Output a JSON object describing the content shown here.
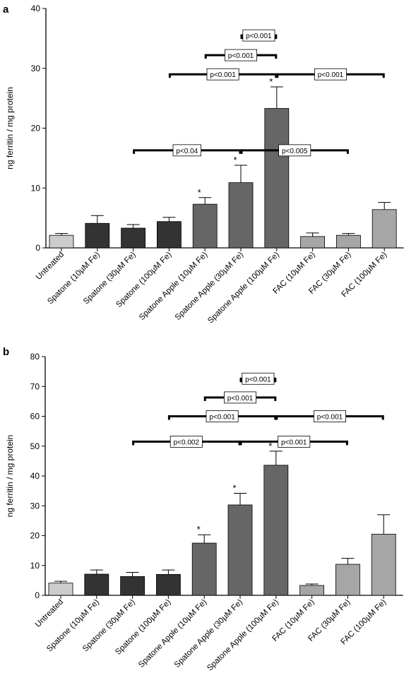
{
  "colors": {
    "untreated": "#cccccc",
    "spatone": "#333333",
    "spatone_apple": "#666666",
    "fac": "#a6a6a6"
  },
  "chart_data": [
    {
      "panel": "a",
      "type": "bar",
      "ylabel": "ng ferritin / mg protein",
      "ylim": [
        0,
        40
      ],
      "yticks": [
        0,
        10,
        20,
        30,
        40
      ],
      "categories": [
        "Untreated",
        "Spatone (10µM Fe)",
        "Spatone (30µM Fe)",
        "Spatone (100µM Fe)",
        "Spatone Apple (10µM Fe)",
        "Spatone Apple (30µM Fe)",
        "Spatone Apple (100µM Fe)",
        "FAC (10µM Fe)",
        "FAC (30µM Fe)",
        "FAC (100µM Fe)"
      ],
      "values": [
        2.1,
        4.1,
        3.3,
        4.4,
        7.3,
        10.9,
        23.3,
        1.9,
        2.1,
        6.4
      ],
      "errors": [
        0.3,
        1.3,
        0.6,
        0.7,
        1.1,
        2.9,
        3.6,
        0.6,
        0.3,
        1.2
      ],
      "groups": [
        "untreated",
        "spatone",
        "spatone",
        "spatone",
        "spatone_apple",
        "spatone_apple",
        "spatone_apple",
        "fac",
        "fac",
        "fac"
      ],
      "stars": [
        "",
        "",
        "",
        "",
        "*",
        "*",
        "*",
        "",
        "",
        ""
      ],
      "comparisons": [
        {
          "from": 5,
          "to": 6,
          "y": 35.5,
          "label": "p<0.001"
        },
        {
          "from": 4,
          "to": 6,
          "y": 32.2,
          "label": "p<0.001"
        },
        {
          "from": 3,
          "to": 6,
          "y": 29.0,
          "label": "p<0.001"
        },
        {
          "from": 6,
          "to": 9,
          "y": 29.0,
          "label": "p<0.001"
        },
        {
          "from": 2,
          "to": 5,
          "y": 16.3,
          "label": "p<0.04"
        },
        {
          "from": 5,
          "to": 8,
          "y": 16.3,
          "label": "p<0.005"
        }
      ]
    },
    {
      "panel": "b",
      "type": "bar",
      "ylabel": "ng ferritin / mg protein",
      "ylim": [
        0,
        80
      ],
      "yticks": [
        0,
        10,
        20,
        30,
        40,
        50,
        60,
        70,
        80
      ],
      "categories": [
        "Untreated",
        "Spatone (10µM Fe)",
        "Spatone (30µM Fe)",
        "Spatone (100µM Fe)",
        "Spatone Apple (10µM Fe)",
        "Spatone Apple (30µM Fe)",
        "Spatone Apple (100µM Fe)",
        "FAC (10µM Fe)",
        "FAC (30µM Fe)",
        "FAC (100µM Fe)"
      ],
      "values": [
        4.1,
        7.1,
        6.3,
        7.0,
        17.5,
        30.3,
        43.6,
        3.3,
        10.4,
        20.5
      ],
      "errors": [
        0.6,
        1.4,
        1.4,
        1.5,
        2.8,
        3.9,
        4.7,
        0.5,
        2.0,
        6.5
      ],
      "groups": [
        "untreated",
        "spatone",
        "spatone",
        "spatone",
        "spatone_apple",
        "spatone_apple",
        "spatone_apple",
        "fac",
        "fac",
        "fac"
      ],
      "stars": [
        "",
        "",
        "",
        "",
        "*",
        "*",
        "*",
        "",
        "",
        ""
      ],
      "comparisons": [
        {
          "from": 5,
          "to": 6,
          "y": 72.6,
          "label": "p<0.001"
        },
        {
          "from": 4,
          "to": 6,
          "y": 66.3,
          "label": "p<0.001"
        },
        {
          "from": 3,
          "to": 6,
          "y": 60.0,
          "label": "p<0.001"
        },
        {
          "from": 6,
          "to": 9,
          "y": 60.0,
          "label": "p<0.001"
        },
        {
          "from": 2,
          "to": 5,
          "y": 51.5,
          "label": "p<0.002"
        },
        {
          "from": 5,
          "to": 8,
          "y": 51.5,
          "label": "p<0.001"
        }
      ]
    }
  ]
}
